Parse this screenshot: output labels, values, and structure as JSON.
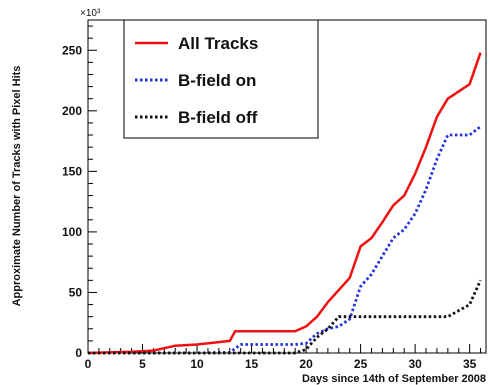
{
  "chart_data": {
    "type": "line",
    "xlabel": "Days since 14th of September 2008",
    "ylabel": "Approximate Number of Tracks with Pixel Hits",
    "y_multiplier_label": "×10³",
    "xlim": [
      0,
      36.5
    ],
    "ylim": [
      0,
      275
    ],
    "x_ticks": [
      0,
      5,
      10,
      15,
      20,
      25,
      30,
      35
    ],
    "y_ticks": [
      0,
      50,
      100,
      150,
      200,
      250
    ],
    "grid": false,
    "legend_position": "top-left",
    "series": [
      {
        "name": "All Tracks",
        "color": "#ee1111",
        "style": "solid",
        "points": [
          [
            0,
            0
          ],
          [
            2,
            0.5
          ],
          [
            4,
            1
          ],
          [
            5,
            1.5
          ],
          [
            6,
            2
          ],
          [
            7,
            4
          ],
          [
            8,
            6
          ],
          [
            10,
            7
          ],
          [
            12,
            9
          ],
          [
            13,
            10
          ],
          [
            13.5,
            18
          ],
          [
            14,
            18
          ],
          [
            16,
            18
          ],
          [
            18,
            18
          ],
          [
            19,
            18
          ],
          [
            20,
            22
          ],
          [
            21,
            30
          ],
          [
            22,
            42
          ],
          [
            23,
            52
          ],
          [
            24,
            62
          ],
          [
            25,
            88
          ],
          [
            26,
            95
          ],
          [
            27,
            108
          ],
          [
            28,
            122
          ],
          [
            29,
            130
          ],
          [
            30,
            148
          ],
          [
            31,
            170
          ],
          [
            32,
            195
          ],
          [
            33,
            210
          ],
          [
            34,
            216
          ],
          [
            35,
            222
          ],
          [
            36,
            248
          ]
        ]
      },
      {
        "name": "B-field on",
        "color": "#2233dd",
        "style": "dotted",
        "points": [
          [
            0,
            0
          ],
          [
            10,
            0
          ],
          [
            13,
            0.5
          ],
          [
            14,
            7
          ],
          [
            19,
            7
          ],
          [
            20,
            8
          ],
          [
            21,
            16
          ],
          [
            22,
            20
          ],
          [
            23,
            22
          ],
          [
            24,
            28
          ],
          [
            25,
            55
          ],
          [
            26,
            65
          ],
          [
            27,
            80
          ],
          [
            28,
            95
          ],
          [
            29,
            102
          ],
          [
            30,
            115
          ],
          [
            31,
            135
          ],
          [
            32,
            160
          ],
          [
            33,
            180
          ],
          [
            35,
            180
          ],
          [
            36,
            187
          ]
        ]
      },
      {
        "name": "B-field off",
        "color": "#111111",
        "style": "dotted",
        "points": [
          [
            0,
            0
          ],
          [
            19,
            0
          ],
          [
            20,
            3
          ],
          [
            21,
            13
          ],
          [
            22,
            20
          ],
          [
            23,
            30
          ],
          [
            33,
            30
          ],
          [
            34,
            35
          ],
          [
            35,
            40
          ],
          [
            36,
            60
          ]
        ]
      }
    ]
  }
}
